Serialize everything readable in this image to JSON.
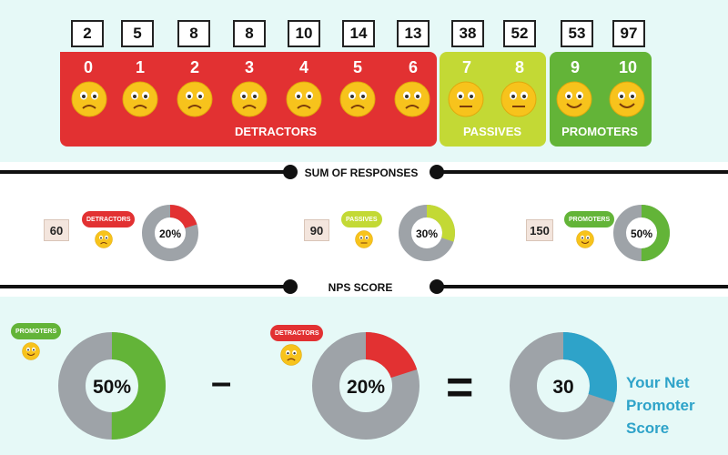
{
  "response_counts": [
    "2",
    "5",
    "8",
    "8",
    "10",
    "14",
    "13",
    "38",
    "52",
    "53",
    "97"
  ],
  "scores": [
    "0",
    "1",
    "2",
    "3",
    "4",
    "5",
    "6",
    "7",
    "8",
    "9",
    "10"
  ],
  "categories": {
    "detractors": "DETRACTORS",
    "passives": "PASSIVES",
    "promoters": "PROMOTERS"
  },
  "colors": {
    "detractor": "#e23132",
    "passive": "#c3d935",
    "promoter": "#63b438",
    "nps": "#2ea3c9",
    "donut_base": "#9ea3a8"
  },
  "sections": {
    "sum_title": "SUM OF RESPONSES",
    "nps_title": "NPS SCORE"
  },
  "sums": {
    "detractors": {
      "total": "60",
      "badge": "DETRACTORS",
      "percent_label": "20%",
      "percent": 20
    },
    "passives": {
      "total": "90",
      "badge": "PASSIVES",
      "percent_label": "30%",
      "percent": 30
    },
    "promoters": {
      "total": "150",
      "badge": "PROMOTERS",
      "percent_label": "50%",
      "percent": 50
    }
  },
  "nps": {
    "promoters_badge": "PROMOTERS",
    "promoters_label": "50%",
    "promoters_percent": 50,
    "minus": "–",
    "detractors_badge": "DETRACTORS",
    "detractors_label": "20%",
    "detractors_percent": 20,
    "equals": "=",
    "result_label": "30",
    "result_percent": 30,
    "caption": [
      "Your Net",
      "Promoter",
      "Score"
    ]
  },
  "icons": [
    "sad-face-icon",
    "neutral-face-icon",
    "happy-face-icon"
  ]
}
